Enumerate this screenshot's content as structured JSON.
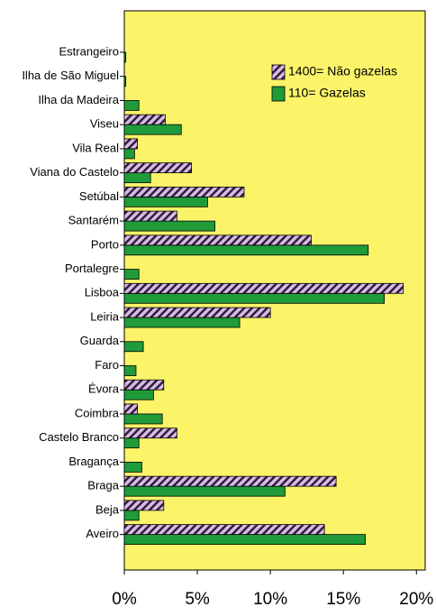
{
  "chart_data": {
    "type": "barh",
    "categories": [
      "Estrangeiro",
      "Ilha de São Miguel",
      "Ilha da Madeira",
      "Viseu",
      "Vila Real",
      "Viana do Castelo",
      "Setúbal",
      "Santarém",
      "Porto",
      "Portalegre",
      "Lisboa",
      "Leiria",
      "Guarda",
      "Faro",
      "Évora",
      "Coimbra",
      "Castelo Branco",
      "Bragança",
      "Braga",
      "Beja",
      "Aveiro"
    ],
    "series": [
      {
        "name": "1400= Não gazelas",
        "color": "#1f9b3a",
        "values": [
          0.1,
          0.1,
          1.0,
          3.9,
          0.7,
          1.8,
          5.7,
          6.2,
          16.7,
          1.0,
          17.8,
          7.9,
          1.3,
          0.8,
          2.0,
          2.6,
          1.0,
          1.2,
          11.0,
          1.0,
          16.5
        ]
      },
      {
        "name": "110= Gazelas",
        "color": "#dcb8e6",
        "values": [
          0,
          0,
          0,
          2.8,
          0.9,
          4.6,
          8.2,
          3.6,
          12.8,
          0,
          19.1,
          10.0,
          0,
          0,
          2.7,
          0.9,
          3.6,
          0,
          14.5,
          2.7,
          13.7
        ]
      }
    ],
    "xlim": [
      0,
      20.6
    ],
    "xticks": [
      {
        "value": 0,
        "label": "0%"
      },
      {
        "value": 5,
        "label": "5%"
      },
      {
        "value": 10,
        "label": "10%"
      },
      {
        "value": 15,
        "label": "15%"
      },
      {
        "value": 20,
        "label": "20%"
      }
    ],
    "legend": "upper right"
  }
}
